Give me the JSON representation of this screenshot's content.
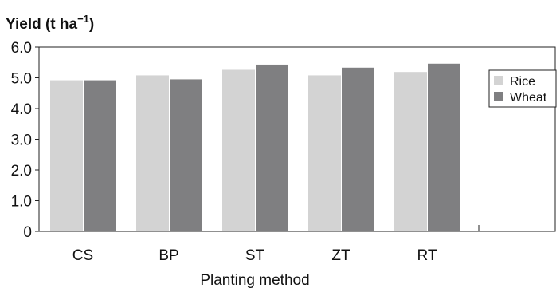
{
  "chart_data": {
    "type": "bar",
    "title": "Yield (t ha",
    "title_superscript": "−1",
    "title_close": ")",
    "xlabel": "Planting method",
    "ylabel": "",
    "categories": [
      "CS",
      "BP",
      "ST",
      "ZT",
      "RT"
    ],
    "series": [
      {
        "name": "Rice",
        "values": [
          4.92,
          5.08,
          5.26,
          5.08,
          5.19
        ],
        "color": "#d3d3d3"
      },
      {
        "name": "Wheat",
        "values": [
          4.92,
          4.95,
          5.43,
          5.33,
          5.46
        ],
        "color": "#7f7f81"
      }
    ],
    "ylim": [
      0,
      6.0
    ],
    "yticks": [
      "0",
      "1.0",
      "2.0",
      "3.0",
      "4.0",
      "5.0",
      "6.0"
    ],
    "ytick_values": [
      0,
      1,
      2,
      3,
      4,
      5,
      6
    ],
    "grid": false,
    "legend_position": "right"
  }
}
